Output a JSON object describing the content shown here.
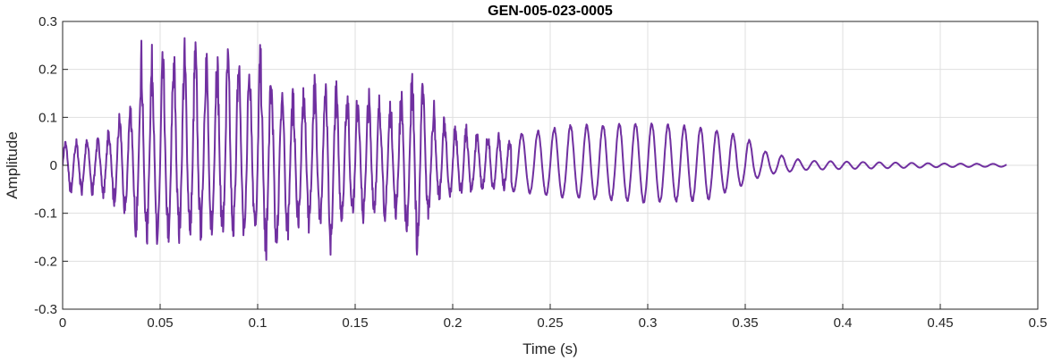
{
  "chart_data": {
    "type": "line",
    "title": "GEN-005-023-0005",
    "xlabel": "Time (s)",
    "ylabel": "Amplitude",
    "xlim": [
      0,
      0.5
    ],
    "ylim": [
      -0.3,
      0.3
    ],
    "xticks": [
      0,
      0.05,
      0.1,
      0.15,
      0.2,
      0.25,
      0.3,
      0.35,
      0.4,
      0.45,
      0.5
    ],
    "xtick_labels": [
      "0",
      "0.05",
      "0.1",
      "0.15",
      "0.2",
      "0.25",
      "0.3",
      "0.35",
      "0.4",
      "0.45",
      "0.5"
    ],
    "yticks": [
      -0.3,
      -0.2,
      -0.1,
      0,
      0.1,
      0.2,
      0.3
    ],
    "ytick_labels": [
      "-0.3",
      "-0.2",
      "-0.1",
      "0",
      "0.1",
      "0.2",
      "0.3"
    ],
    "grid": true,
    "series": [
      {
        "color": "#7030A0",
        "x_start": 0,
        "x_end": 0.484,
        "envelope": [
          [
            0.0,
            0.055,
            -0.06
          ],
          [
            0.02,
            0.06,
            -0.07
          ],
          [
            0.03,
            0.12,
            -0.1
          ],
          [
            0.035,
            0.14,
            -0.13
          ],
          [
            0.04,
            0.27,
            -0.18
          ],
          [
            0.05,
            0.24,
            -0.17
          ],
          [
            0.06,
            0.27,
            -0.17
          ],
          [
            0.07,
            0.275,
            -0.16
          ],
          [
            0.08,
            0.26,
            -0.17
          ],
          [
            0.09,
            0.255,
            -0.16
          ],
          [
            0.1,
            0.27,
            -0.17
          ],
          [
            0.107,
            0.2,
            -0.235
          ],
          [
            0.12,
            0.16,
            -0.15
          ],
          [
            0.13,
            0.2,
            -0.14
          ],
          [
            0.137,
            0.18,
            -0.2
          ],
          [
            0.15,
            0.18,
            -0.12
          ],
          [
            0.16,
            0.16,
            -0.13
          ],
          [
            0.17,
            0.14,
            -0.11
          ],
          [
            0.181,
            0.22,
            -0.22
          ],
          [
            0.19,
            0.14,
            -0.08
          ],
          [
            0.2,
            0.095,
            -0.07
          ],
          [
            0.22,
            0.07,
            -0.06
          ],
          [
            0.23,
            0.065,
            -0.055
          ],
          [
            0.24,
            0.07,
            -0.06
          ],
          [
            0.26,
            0.085,
            -0.07
          ],
          [
            0.3,
            0.09,
            -0.08
          ],
          [
            0.33,
            0.08,
            -0.075
          ],
          [
            0.35,
            0.06,
            -0.04
          ],
          [
            0.36,
            0.03,
            -0.02
          ],
          [
            0.38,
            0.01,
            -0.01
          ],
          [
            0.4,
            0.008,
            -0.008
          ],
          [
            0.45,
            0.004,
            -0.004
          ],
          [
            0.484,
            0.003,
            -0.003
          ]
        ]
      }
    ]
  }
}
